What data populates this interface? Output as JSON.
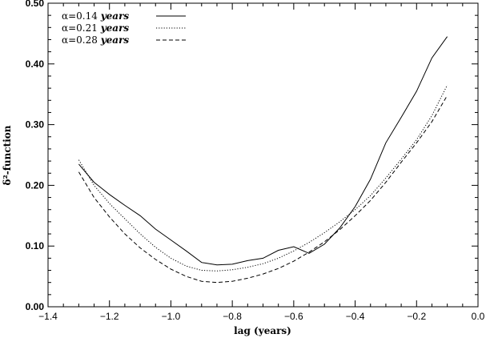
{
  "chart_data": {
    "type": "line",
    "xlabel": "lag (years)",
    "ylabel": "δ²-function",
    "xlim": [
      -1.4,
      0.0
    ],
    "ylim": [
      0.0,
      0.5
    ],
    "xticks": [
      -1.4,
      -1.2,
      -1.0,
      -0.8,
      -0.6,
      -0.4,
      -0.2,
      0.0
    ],
    "xtick_labels": [
      "−1.4",
      "−1.2",
      "−1.0",
      "−0.8",
      "−0.6",
      "−0.4",
      "−0.2",
      "0.0"
    ],
    "yticks": [
      0.0,
      0.1,
      0.2,
      0.3,
      0.4,
      0.5
    ],
    "ytick_labels": [
      "0.00",
      "0.10",
      "0.20",
      "0.30",
      "0.40",
      "0.50"
    ],
    "legend_position": "top-left",
    "grid": false,
    "series": [
      {
        "name": "α=0.14 years",
        "name_prefix": "α=0.14 ",
        "name_unit": "years",
        "style": "solid",
        "x": [
          -1.3,
          -1.25,
          -1.2,
          -1.15,
          -1.1,
          -1.05,
          -1.0,
          -0.95,
          -0.9,
          -0.85,
          -0.8,
          -0.75,
          -0.7,
          -0.65,
          -0.6,
          -0.55,
          -0.5,
          -0.45,
          -0.4,
          -0.35,
          -0.3,
          -0.25,
          -0.2,
          -0.15,
          -0.1
        ],
        "y": [
          0.235,
          0.205,
          0.185,
          0.167,
          0.15,
          0.128,
          0.11,
          0.092,
          0.073,
          0.069,
          0.07,
          0.076,
          0.08,
          0.093,
          0.099,
          0.088,
          0.103,
          0.13,
          0.165,
          0.21,
          0.27,
          0.312,
          0.355,
          0.41,
          0.445
        ]
      },
      {
        "name": "α=0.21 years",
        "name_prefix": "α=0.21 ",
        "name_unit": "years",
        "style": "dotted",
        "x": [
          -1.3,
          -1.25,
          -1.2,
          -1.15,
          -1.1,
          -1.05,
          -1.0,
          -0.95,
          -0.9,
          -0.85,
          -0.8,
          -0.75,
          -0.7,
          -0.65,
          -0.6,
          -0.55,
          -0.5,
          -0.45,
          -0.4,
          -0.35,
          -0.3,
          -0.25,
          -0.2,
          -0.15,
          -0.1
        ],
        "y": [
          0.242,
          0.2,
          0.17,
          0.145,
          0.12,
          0.098,
          0.08,
          0.067,
          0.06,
          0.059,
          0.061,
          0.065,
          0.071,
          0.08,
          0.092,
          0.106,
          0.122,
          0.14,
          0.16,
          0.183,
          0.212,
          0.243,
          0.275,
          0.315,
          0.365
        ]
      },
      {
        "name": "α=0.28 years",
        "name_prefix": "α=0.28 ",
        "name_unit": "years",
        "style": "dashed",
        "x": [
          -1.3,
          -1.25,
          -1.2,
          -1.15,
          -1.1,
          -1.05,
          -1.0,
          -0.95,
          -0.9,
          -0.85,
          -0.8,
          -0.75,
          -0.7,
          -0.65,
          -0.6,
          -0.55,
          -0.5,
          -0.45,
          -0.4,
          -0.35,
          -0.3,
          -0.25,
          -0.2,
          -0.15,
          -0.1
        ],
        "y": [
          0.222,
          0.18,
          0.148,
          0.12,
          0.097,
          0.078,
          0.062,
          0.05,
          0.042,
          0.04,
          0.042,
          0.047,
          0.054,
          0.063,
          0.075,
          0.09,
          0.107,
          0.127,
          0.15,
          0.175,
          0.205,
          0.238,
          0.27,
          0.305,
          0.348
        ]
      }
    ]
  }
}
